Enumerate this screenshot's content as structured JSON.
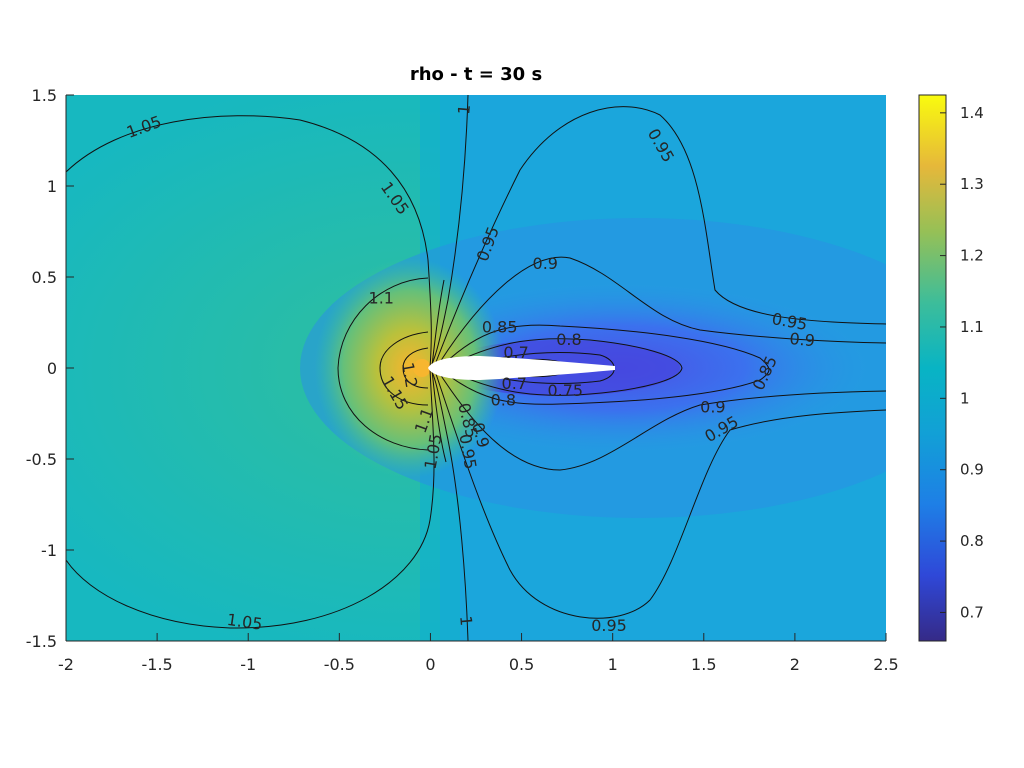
{
  "chart_data": {
    "type": "heatmap",
    "title": "rho - t = 30 s",
    "xlim": [
      -2,
      2.5
    ],
    "ylim": [
      -1.5,
      1.5
    ],
    "x_ticks": [
      -2,
      -1.5,
      -1,
      -0.5,
      0,
      0.5,
      1,
      1.5,
      2,
      2.5
    ],
    "y_ticks": [
      -1.5,
      -1,
      -0.5,
      0,
      0.5,
      1,
      1.5
    ],
    "x_tick_labels": [
      "-2",
      "-1.5",
      "-1",
      "-0.5",
      "0",
      "0.5",
      "1",
      "1.5",
      "2",
      "2.5"
    ],
    "y_tick_labels": [
      "-1.5",
      "-1",
      "-0.5",
      "0",
      "0.5",
      "1",
      "1.5"
    ],
    "colorbar": {
      "colormap": "parula",
      "range": [
        0.66,
        1.425
      ],
      "ticks": [
        0.7,
        0.8,
        0.9,
        1,
        1.1,
        1.2,
        1.3,
        1.4
      ],
      "tick_labels": [
        "0.7",
        "0.8",
        "0.9",
        "1",
        "1.1",
        "1.2",
        "1.3",
        "1.4"
      ]
    },
    "contour_levels": [
      0.7,
      0.75,
      0.8,
      0.85,
      0.9,
      0.95,
      1,
      1.05,
      1.1,
      1.15,
      1.2
    ],
    "contour_labels": [
      {
        "text": "1.05",
        "x": -1.57,
        "y": 1.32,
        "rot": -20
      },
      {
        "text": "1.05",
        "x": -0.2,
        "y": 0.93,
        "rot": 55
      },
      {
        "text": "1.05",
        "x": -1.02,
        "y": -1.4,
        "rot": 8
      },
      {
        "text": "1.05",
        "x": 0.02,
        "y": -0.46,
        "rot": -80
      },
      {
        "text": "1.1",
        "x": -0.27,
        "y": 0.38,
        "rot": 0
      },
      {
        "text": "1.1",
        "x": -0.03,
        "y": -0.29,
        "rot": -70
      },
      {
        "text": "1.15",
        "x": -0.2,
        "y": -0.14,
        "rot": 60
      },
      {
        "text": "1.2",
        "x": -0.12,
        "y": -0.04,
        "rot": 80
      },
      {
        "text": "1",
        "x": 0.19,
        "y": 1.42,
        "rot": -85
      },
      {
        "text": "1",
        "x": 0.19,
        "y": -1.39,
        "rot": 85
      },
      {
        "text": "0.95",
        "x": 1.26,
        "y": 1.22,
        "rot": 60
      },
      {
        "text": "0.95",
        "x": 0.32,
        "y": 0.68,
        "rot": -70
      },
      {
        "text": "0.95",
        "x": 1.97,
        "y": 0.25,
        "rot": 10
      },
      {
        "text": "0.95",
        "x": 1.6,
        "y": -0.34,
        "rot": -30
      },
      {
        "text": "0.95",
        "x": 0.98,
        "y": -1.42,
        "rot": 0
      },
      {
        "text": "0.95",
        "x": 0.2,
        "y": -0.46,
        "rot": 80
      },
      {
        "text": "0.9",
        "x": 0.63,
        "y": 0.57,
        "rot": 0
      },
      {
        "text": "0.9",
        "x": 2.04,
        "y": 0.15,
        "rot": 5
      },
      {
        "text": "0.9",
        "x": 1.55,
        "y": -0.22,
        "rot": 0
      },
      {
        "text": "0.9",
        "x": 0.27,
        "y": -0.37,
        "rot": 75
      },
      {
        "text": "0.85",
        "x": 0.38,
        "y": 0.22,
        "rot": 0
      },
      {
        "text": "0.85",
        "x": 1.84,
        "y": -0.03,
        "rot": -65
      },
      {
        "text": "0.85",
        "x": 0.2,
        "y": -0.29,
        "rot": 75
      },
      {
        "text": "0.8",
        "x": 0.76,
        "y": 0.15,
        "rot": 0
      },
      {
        "text": "0.8",
        "x": 0.4,
        "y": -0.18,
        "rot": 0
      },
      {
        "text": "0.7",
        "x": 0.47,
        "y": 0.08,
        "rot": 0
      },
      {
        "text": "0.7",
        "x": 0.46,
        "y": -0.09,
        "rot": 0
      },
      {
        "text": "0.75",
        "x": 0.74,
        "y": -0.13,
        "rot": 0
      }
    ],
    "grid": false,
    "legend": "none"
  }
}
